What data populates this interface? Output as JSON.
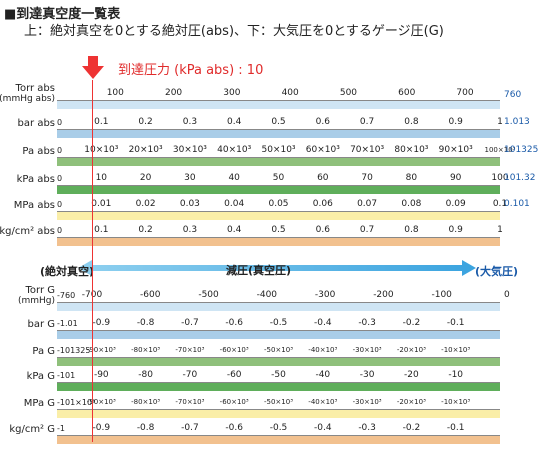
{
  "title": "■到達真空度一覧表",
  "subtitle": "上：絶対真空を0とする絶対圧(abs)、下：大気圧を0とするゲージ圧(G)",
  "marker": {
    "label": "到達圧力 (kPa abs) : 10",
    "kpa_abs": 10
  },
  "colors": {
    "blue": "#a9cde8",
    "green": "#8fc07b",
    "yellow": "#faeea8",
    "orange": "#f2c18f",
    "lightblue": "#cfe5f4",
    "red": "#e33",
    "accent": "#1a5aa8"
  },
  "direction": {
    "left": "(絶対真空)",
    "middle": "減圧(真空圧)",
    "right": "(大気圧)"
  },
  "abs_scales": [
    {
      "name": "Torr abs",
      "unit": "(mmHg abs)",
      "color": "#cfe5f4",
      "left": "",
      "right": "760",
      "ticks": [
        "100",
        "200",
        "300",
        "400",
        "500",
        "600",
        "700"
      ]
    },
    {
      "name": "bar abs",
      "unit": "",
      "color": "#a9cde8",
      "left": "0",
      "right": "1.013",
      "ticks": [
        "0.1",
        "0.2",
        "0.3",
        "0.4",
        "0.5",
        "0.6",
        "0.7",
        "0.8",
        "0.9",
        "1"
      ]
    },
    {
      "name": "Pa abs",
      "unit": "",
      "color": "#8fc07b",
      "left": "0",
      "right": "101325",
      "ticks": [
        "10×10³",
        "20×10³",
        "30×10³",
        "40×10³",
        "50×10³",
        "60×10³",
        "70×10³",
        "80×10³",
        "90×10³",
        "100×10³"
      ]
    },
    {
      "name": "kPa abs",
      "unit": "",
      "color": "#5fae5b",
      "left": "0",
      "right": "101.32",
      "ticks": [
        "10",
        "20",
        "30",
        "40",
        "50",
        "60",
        "70",
        "80",
        "90",
        "100"
      ]
    },
    {
      "name": "MPa abs",
      "unit": "",
      "color": "#faeea8",
      "left": "0",
      "right": "0.101",
      "ticks": [
        "0.01",
        "0.02",
        "0.03",
        "0.04",
        "0.05",
        "0.06",
        "0.07",
        "0.08",
        "0.09",
        "0.1"
      ]
    },
    {
      "name": "kg/cm² abs",
      "unit": "",
      "color": "#f2c18f",
      "left": "0",
      "right": "",
      "ticks": [
        "0.1",
        "0.2",
        "0.3",
        "0.4",
        "0.5",
        "0.6",
        "0.7",
        "0.8",
        "0.9",
        "1"
      ]
    }
  ],
  "gauge_scales": [
    {
      "name": "Torr G",
      "unit": "(mmHg)",
      "color": "#cfe5f4",
      "left": "-760",
      "right": "0",
      "ticks": [
        "-700",
        "-600",
        "-500",
        "-400",
        "-300",
        "-200",
        "-100"
      ]
    },
    {
      "name": "bar G",
      "unit": "",
      "color": "#a9cde8",
      "left": "-1.01",
      "right": "",
      "ticks": [
        "-0.9",
        "-0.8",
        "-0.7",
        "-0.6",
        "-0.5",
        "-0.4",
        "-0.3",
        "-0.2",
        "-0.1"
      ]
    },
    {
      "name": "Pa G",
      "unit": "",
      "color": "#8fc07b",
      "left": "-101325",
      "right": "",
      "ticks": [
        "-90×10³",
        "-80×10³",
        "-70×10³",
        "-60×10³",
        "-50×10³",
        "-40×10³",
        "-30×10³",
        "-20×10³",
        "-10×10³"
      ]
    },
    {
      "name": "kPa G",
      "unit": "",
      "color": "#5fae5b",
      "left": "-101",
      "right": "",
      "ticks": [
        "-90",
        "-80",
        "-70",
        "-60",
        "-50",
        "-40",
        "-30",
        "-20",
        "-10"
      ]
    },
    {
      "name": "MPa G",
      "unit": "",
      "color": "#faeea8",
      "left": "-101×10³",
      "right": "",
      "ticks": [
        "-90×10³",
        "-80×10³",
        "-70×10³",
        "-60×10³",
        "-50×10³",
        "-40×10³",
        "-30×10³",
        "-20×10³",
        "-10×10³"
      ]
    },
    {
      "name": "kg/cm² G",
      "unit": "",
      "color": "#f2c18f",
      "left": "-1",
      "right": "",
      "ticks": [
        "-0.9",
        "-0.8",
        "-0.7",
        "-0.6",
        "-0.5",
        "-0.4",
        "-0.3",
        "-0.2",
        "-0.1"
      ]
    }
  ]
}
